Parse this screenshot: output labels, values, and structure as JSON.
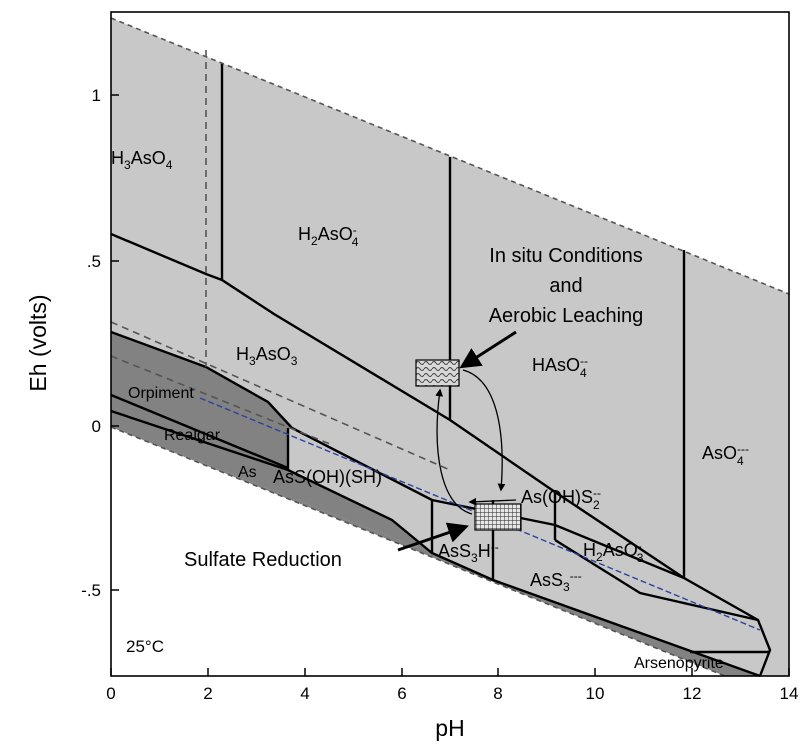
{
  "chart_data": {
    "type": "pourbaix-diagram",
    "title": "",
    "xlabel": "pH",
    "ylabel": "Eh (volts)",
    "xlim": [
      0,
      14
    ],
    "ylim": [
      -0.75,
      1.25
    ],
    "x_ticks": [
      {
        "value": 0,
        "label": "0"
      },
      {
        "value": 2,
        "label": "2"
      },
      {
        "value": 4,
        "label": "4"
      },
      {
        "value": 6,
        "label": "6"
      },
      {
        "value": 8,
        "label": "8"
      },
      {
        "value": 10,
        "label": "10"
      },
      {
        "value": 12,
        "label": "12"
      },
      {
        "value": 14,
        "label": "14"
      }
    ],
    "y_ticks": [
      {
        "value": -0.5,
        "label": "-.5"
      },
      {
        "value": 0,
        "label": "0"
      },
      {
        "value": 0.5,
        "label": ".5"
      },
      {
        "value": 1,
        "label": "1"
      }
    ],
    "temperature_label": "25°C",
    "colors": {
      "aqueous_field": "#c8c8c8",
      "solid_field": "#828282",
      "boundary": "#000000",
      "water_limit": "#555555",
      "sulfur_line": "#3040a0"
    },
    "water_stability_limits": [
      {
        "name": "upper",
        "points": [
          [
            0,
            1.23
          ],
          [
            14,
            0.4
          ]
        ]
      },
      {
        "name": "lower",
        "points": [
          [
            0,
            0.0
          ],
          [
            14,
            -0.83
          ]
        ]
      }
    ],
    "aqueous_species_labels": [
      {
        "id": "h3aso4",
        "text": "H₃AsO₄",
        "ph": 0.75,
        "eh": 0.8
      },
      {
        "id": "h2aso4",
        "text": "H₂AsO₄⁻",
        "ph": 3.95,
        "eh": 0.57
      },
      {
        "id": "haso4",
        "text": "HAsO₄⁻⁻",
        "ph": 9.4,
        "eh": 0.18
      },
      {
        "id": "aso4",
        "text": "AsO₄⁻⁻⁻",
        "ph": 12.2,
        "eh": -0.09
      },
      {
        "id": "h3aso3",
        "text": "H₃AsO₃",
        "ph": 2.55,
        "eh": 0.19
      },
      {
        "id": "asohsh",
        "text": "AsS(OH)(SH)",
        "ph": 3.9,
        "eh": -0.13
      },
      {
        "id": "asohs2",
        "text": "As(OH)S₂⁻⁻",
        "ph": 8.2,
        "eh": -0.23
      },
      {
        "id": "ass3h",
        "text": "AsS₃H⁻⁻",
        "ph": 6.8,
        "eh": -0.37
      },
      {
        "id": "h2aso3",
        "text": "H₂AsO₃⁻",
        "ph": 9.7,
        "eh": -0.41
      },
      {
        "id": "ass3",
        "text": "AsS₃⁻⁻⁻",
        "ph": 8.35,
        "eh": -0.47
      }
    ],
    "mineral_labels": [
      {
        "id": "orpiment",
        "text": "Orpiment",
        "ph": 0.45,
        "eh": 0.09
      },
      {
        "id": "realgar",
        "text": "Realgar",
        "ph": 1.2,
        "eh": -0.03
      },
      {
        "id": "as",
        "text": "As",
        "ph": 2.8,
        "eh": -0.14
      },
      {
        "id": "arsenopyrite",
        "text": "Arsenopyrite",
        "ph": 11.0,
        "eh": -0.71
      }
    ],
    "annotations": [
      {
        "id": "aerobic",
        "lines": [
          "In situ Conditions",
          "and",
          "Aerobic Leaching"
        ],
        "marker_ph": 7.25,
        "marker_eh": 0.16
      },
      {
        "id": "sulfate",
        "lines": [
          "Sulfate Reduction"
        ],
        "marker_ph": 7.97,
        "marker_eh": -0.28
      }
    ]
  }
}
